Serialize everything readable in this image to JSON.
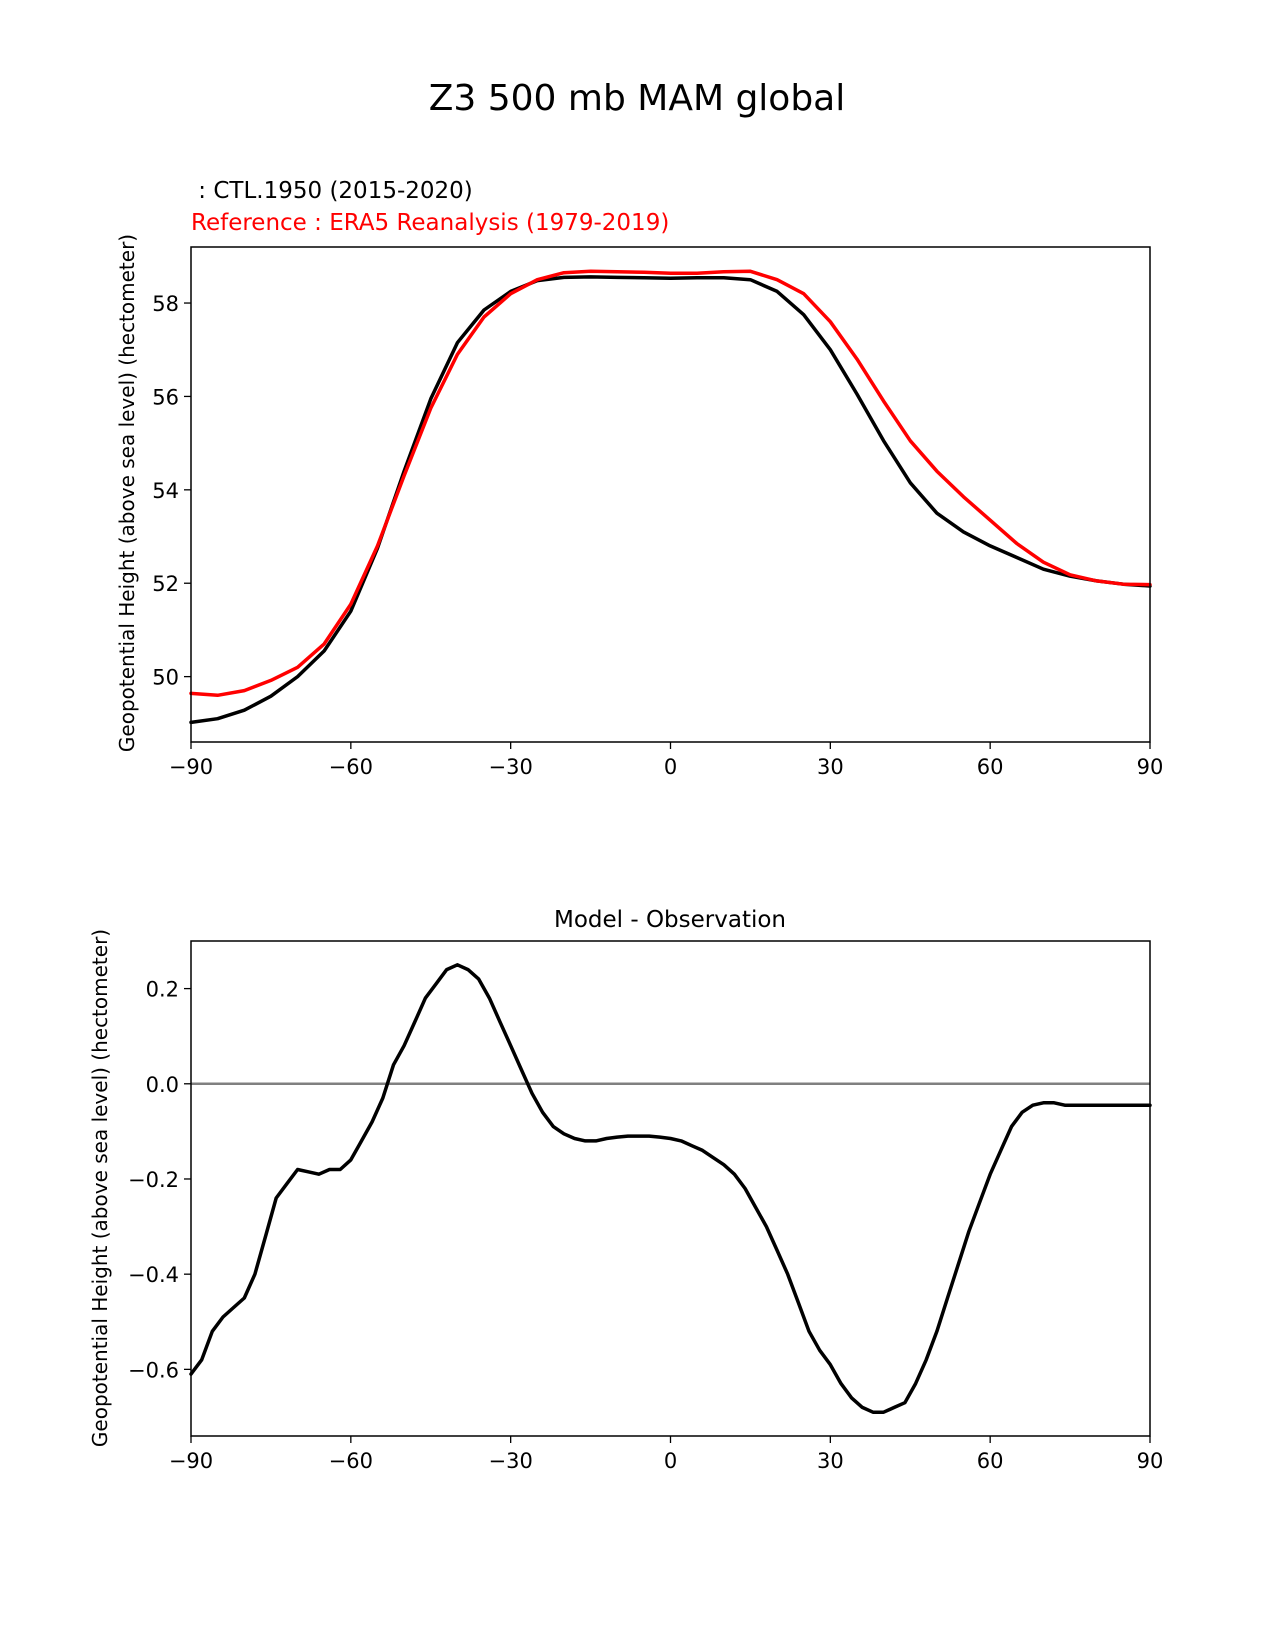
{
  "figure": {
    "suptitle": "Z3 500 mb MAM global"
  },
  "colors": {
    "model": "#000000",
    "reference": "#ff0000",
    "zero_line": "#808080"
  },
  "chart_data": [
    {
      "type": "line",
      "title_test": " : CTL.1950 (2015-2020)",
      "title_reference": "Reference : ERA5 Reanalysis (1979-2019)",
      "xlabel": "",
      "ylabel": "Geopotential Height (above sea level) (hectometer)",
      "xlim": [
        -90,
        90
      ],
      "ylim": [
        48.6,
        59.2
      ],
      "xticks": [
        -90,
        -60,
        -30,
        0,
        30,
        60,
        90
      ],
      "xtick_labels": [
        "−90",
        "−60",
        "−30",
        "0",
        "30",
        "60",
        "90"
      ],
      "yticks": [
        50,
        52,
        54,
        56,
        58
      ],
      "ytick_labels": [
        "50",
        "52",
        "54",
        "56",
        "58"
      ],
      "grid": false,
      "x": [
        -90,
        -85,
        -80,
        -75,
        -70,
        -65,
        -60,
        -55,
        -50,
        -45,
        -40,
        -35,
        -30,
        -25,
        -20,
        -15,
        -10,
        -5,
        0,
        5,
        10,
        15,
        20,
        25,
        30,
        35,
        40,
        45,
        50,
        55,
        60,
        65,
        70,
        75,
        80,
        85,
        90
      ],
      "series": [
        {
          "name": "CTL.1950 (2015-2020)",
          "color": "#000000",
          "values": [
            49.02,
            49.1,
            49.28,
            49.58,
            50.0,
            50.55,
            51.4,
            52.75,
            54.4,
            55.95,
            57.15,
            57.85,
            58.25,
            58.48,
            58.55,
            58.56,
            58.55,
            58.54,
            58.53,
            58.54,
            58.54,
            58.5,
            58.25,
            57.75,
            57.0,
            56.05,
            55.05,
            54.15,
            53.5,
            53.1,
            52.8,
            52.55,
            52.3,
            52.15,
            52.05,
            51.98,
            51.94
          ]
        },
        {
          "name": "ERA5 Reanalysis (1979-2019)",
          "color": "#ff0000",
          "values": [
            49.64,
            49.6,
            49.7,
            49.92,
            50.2,
            50.7,
            51.55,
            52.8,
            54.3,
            55.75,
            56.9,
            57.7,
            58.2,
            58.5,
            58.65,
            58.68,
            58.67,
            58.66,
            58.64,
            58.64,
            58.67,
            58.68,
            58.5,
            58.2,
            57.6,
            56.8,
            55.9,
            55.05,
            54.4,
            53.85,
            53.35,
            52.85,
            52.45,
            52.18,
            52.05,
            51.98,
            51.97
          ]
        }
      ]
    },
    {
      "type": "line",
      "title": "Model - Observation",
      "xlabel": "",
      "ylabel": "Geopotential Height (above sea level) (hectometer)",
      "xlim": [
        -90,
        90
      ],
      "ylim": [
        -0.74,
        0.3
      ],
      "xticks": [
        -90,
        -60,
        -30,
        0,
        30,
        60,
        90
      ],
      "xtick_labels": [
        "−90",
        "−60",
        "−30",
        "0",
        "30",
        "60",
        "90"
      ],
      "yticks": [
        -0.6,
        -0.4,
        -0.2,
        0.0,
        0.2
      ],
      "ytick_labels": [
        "−0.6",
        "−0.4",
        "−0.2",
        "0.0",
        "0.2"
      ],
      "grid": false,
      "zero_line": 0.0,
      "x": [
        -90,
        -88,
        -86,
        -84,
        -82,
        -80,
        -78,
        -76,
        -74,
        -72,
        -70,
        -68,
        -66,
        -64,
        -62,
        -60,
        -58,
        -56,
        -54,
        -52,
        -50,
        -48,
        -46,
        -44,
        -42,
        -40,
        -38,
        -36,
        -34,
        -32,
        -30,
        -28,
        -26,
        -24,
        -22,
        -20,
        -18,
        -16,
        -14,
        -12,
        -10,
        -8,
        -6,
        -4,
        -2,
        0,
        2,
        4,
        6,
        8,
        10,
        12,
        14,
        16,
        18,
        20,
        22,
        24,
        26,
        28,
        30,
        32,
        34,
        36,
        38,
        40,
        42,
        44,
        46,
        48,
        50,
        52,
        54,
        56,
        58,
        60,
        62,
        64,
        66,
        68,
        70,
        72,
        74,
        76,
        78,
        80,
        82,
        84,
        86,
        88,
        90
      ],
      "series": [
        {
          "name": "Model - Observation",
          "color": "#000000",
          "values": [
            -0.61,
            -0.58,
            -0.52,
            -0.49,
            -0.47,
            -0.45,
            -0.4,
            -0.32,
            -0.24,
            -0.21,
            -0.18,
            -0.185,
            -0.19,
            -0.18,
            -0.18,
            -0.16,
            -0.12,
            -0.08,
            -0.03,
            0.04,
            0.08,
            0.13,
            0.18,
            0.21,
            0.24,
            0.25,
            0.24,
            0.22,
            0.18,
            0.13,
            0.08,
            0.03,
            -0.02,
            -0.06,
            -0.09,
            -0.105,
            -0.115,
            -0.12,
            -0.12,
            -0.115,
            -0.112,
            -0.11,
            -0.11,
            -0.11,
            -0.112,
            -0.115,
            -0.12,
            -0.13,
            -0.14,
            -0.155,
            -0.17,
            -0.19,
            -0.22,
            -0.26,
            -0.3,
            -0.35,
            -0.4,
            -0.46,
            -0.52,
            -0.56,
            -0.59,
            -0.63,
            -0.66,
            -0.68,
            -0.69,
            -0.69,
            -0.68,
            -0.67,
            -0.63,
            -0.58,
            -0.52,
            -0.45,
            -0.38,
            -0.31,
            -0.25,
            -0.19,
            -0.14,
            -0.09,
            -0.06,
            -0.045,
            -0.04,
            -0.04,
            -0.045,
            -0.045,
            -0.045,
            -0.045,
            -0.045,
            -0.045,
            -0.045,
            -0.045,
            -0.045
          ]
        }
      ]
    }
  ]
}
